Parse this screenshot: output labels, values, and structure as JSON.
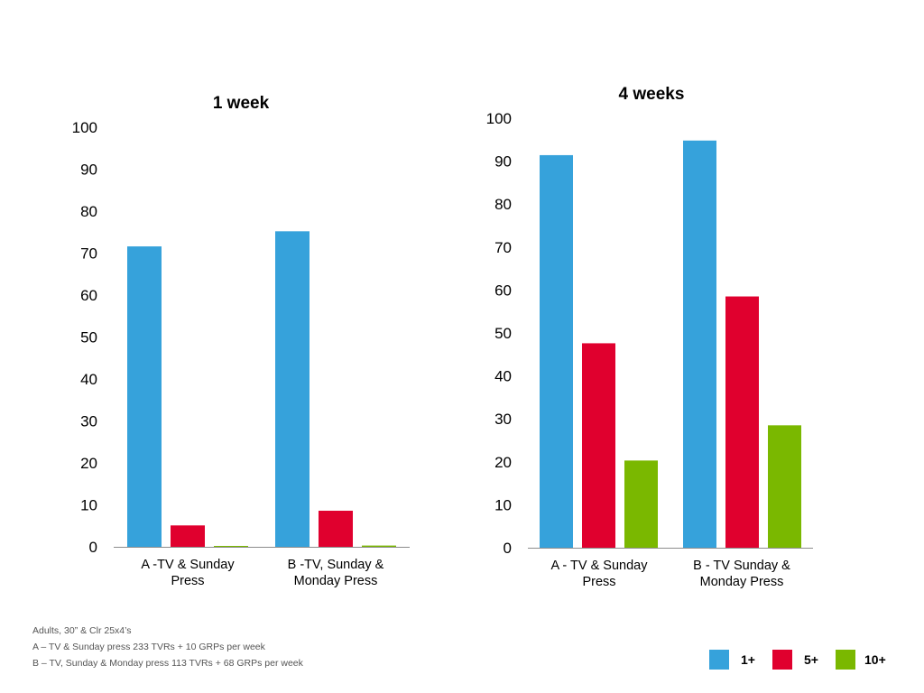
{
  "chart_data": [
    {
      "type": "bar",
      "title": "1 week",
      "categories": [
        "A -TV & Sunday Press",
        "B -TV, Sunday & Monday Press"
      ],
      "series": [
        {
          "name": "1+",
          "color": "#36a2db",
          "values": [
            71.6,
            75.2
          ]
        },
        {
          "name": "5+",
          "color": "#e0002e",
          "values": [
            5.1,
            8.6
          ]
        },
        {
          "name": "10+",
          "color": "#7ab800",
          "values": [
            0.2,
            0.3
          ]
        }
      ],
      "ylim": [
        0,
        100
      ],
      "yticks": [
        0,
        10,
        20,
        30,
        40,
        50,
        60,
        70,
        80,
        90,
        100
      ],
      "grid": false
    },
    {
      "type": "bar",
      "title": "4 weeks",
      "categories": [
        "A - TV & Sunday Press",
        "B - TV Sunday & Monday Press"
      ],
      "series": [
        {
          "name": "1+",
          "color": "#36a2db",
          "values": [
            91.4,
            94.8
          ]
        },
        {
          "name": "5+",
          "color": "#e0002e",
          "values": [
            47.6,
            58.5
          ]
        },
        {
          "name": "10+",
          "color": "#7ab800",
          "values": [
            20.3,
            28.5
          ]
        }
      ],
      "ylim": [
        0,
        100
      ],
      "yticks": [
        0,
        10,
        20,
        30,
        40,
        50,
        60,
        70,
        80,
        90,
        100
      ],
      "grid": false
    }
  ],
  "notes": [
    "Adults, 30” & Clr 25x4’s",
    "A – TV & Sunday press 233 TVRs + 10 GRPs per week",
    "B – TV, Sunday & Monday press 113 TVRs + 68 GRPs per week"
  ],
  "legend": [
    {
      "label": "1+",
      "color": "#36a2db"
    },
    {
      "label": "5+",
      "color": "#e0002e"
    },
    {
      "label": "10+",
      "color": "#7ab800"
    }
  ]
}
